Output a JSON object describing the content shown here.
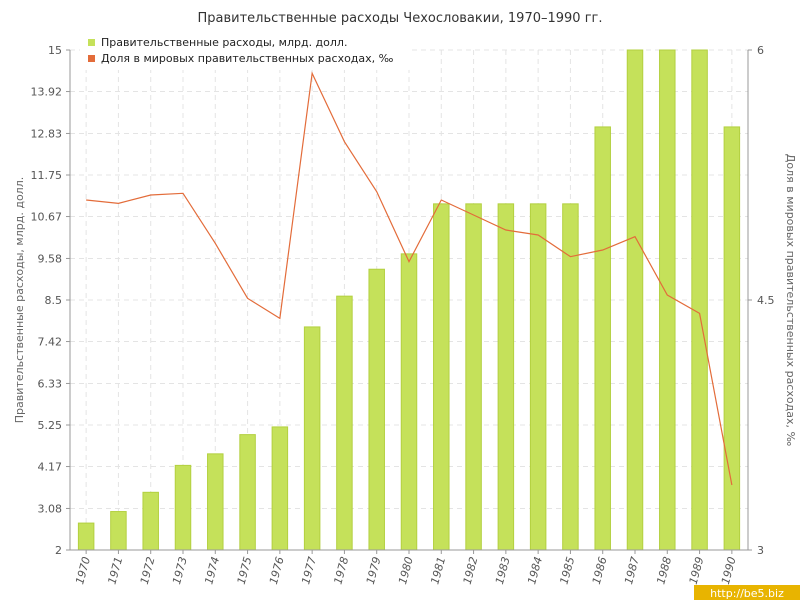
{
  "chart_data": {
    "type": "bar",
    "title": "Правительственные расходы Чехословакии, 1970–1990 гг.",
    "categories": [
      "1970",
      "1971",
      "1972",
      "1973",
      "1974",
      "1975",
      "1976",
      "1977",
      "1978",
      "1979",
      "1980",
      "1981",
      "1982",
      "1983",
      "1984",
      "1985",
      "1986",
      "1987",
      "1988",
      "1989",
      "1990"
    ],
    "series": [
      {
        "name": "Правительственные расходы, млрд. долл.",
        "kind": "bar",
        "axis": "left",
        "color": "#c5e15a",
        "values": [
          2.7,
          3.0,
          3.5,
          4.2,
          4.5,
          5.0,
          5.2,
          7.8,
          8.6,
          9.3,
          9.7,
          11.0,
          11.0,
          11.0,
          11.0,
          11.0,
          13.0,
          15.0,
          15.0,
          15.0,
          13.0
        ]
      },
      {
        "name": "Доля в мировых правительственных расходах, ‰",
        "kind": "line",
        "axis": "right",
        "color": "#e36c3a",
        "values": [
          5.1,
          5.08,
          5.13,
          5.14,
          4.84,
          4.51,
          4.39,
          5.86,
          5.45,
          5.15,
          4.73,
          5.1,
          5.01,
          4.92,
          4.89,
          4.76,
          4.8,
          4.88,
          4.53,
          4.42,
          3.39
        ]
      }
    ],
    "ylabel": "Правительственные расходы, млрд. долл.",
    "ylabel_right": "Доля в мировых правительственных расходах, ‰",
    "ylim": [
      2,
      15
    ],
    "ylim_right": [
      3,
      6
    ],
    "yticks": [
      "2",
      "3.08",
      "4.17",
      "5.25",
      "6.33",
      "7.42",
      "8.5",
      "9.58",
      "10.67",
      "11.75",
      "12.83",
      "13.92",
      "15"
    ],
    "yticks_values": [
      2,
      3.08,
      4.17,
      5.25,
      6.33,
      7.42,
      8.5,
      9.58,
      10.67,
      11.75,
      12.83,
      13.92,
      15
    ],
    "yticks_right": [
      "3",
      "4.5",
      "6"
    ],
    "yticks_right_values": [
      3,
      4.5,
      6
    ],
    "grid": true,
    "legend_position": "top-left"
  },
  "watermark": "http://be5.biz",
  "colors": {
    "bar_fill": "#c5e15a",
    "bar_edge": "#b3d040",
    "line": "#e36c3a",
    "grid": "#e4e4e4",
    "axis": "#999999"
  }
}
